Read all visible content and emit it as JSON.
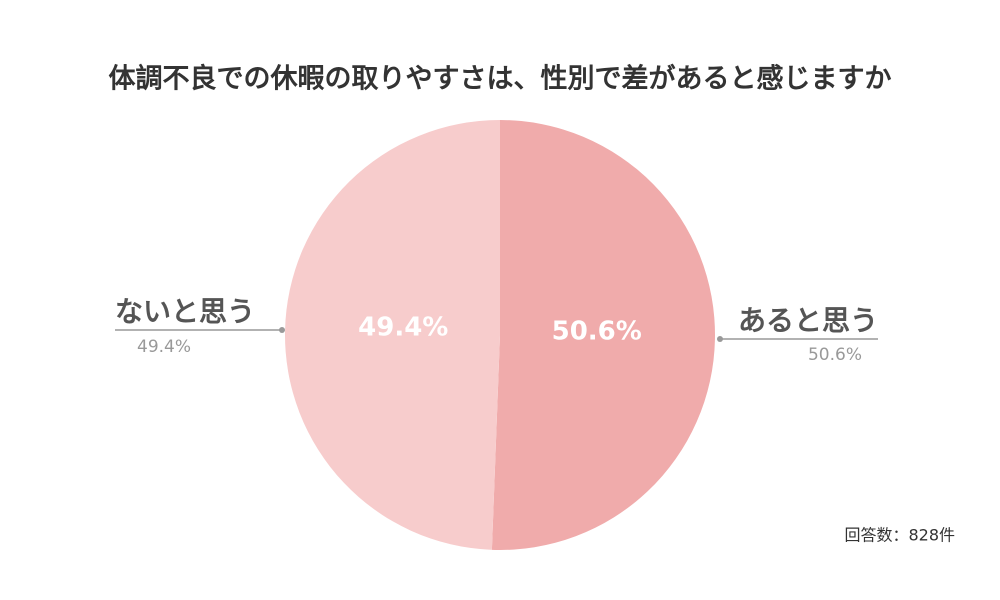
{
  "chart_data": {
    "type": "pie",
    "title": "体調不良での休暇の取りやすさは、性別で差があると感じますか",
    "categories": [
      "あると思う",
      "ないと思う"
    ],
    "values": [
      50.6,
      49.4
    ],
    "value_labels": [
      "50.6%",
      "49.4%"
    ],
    "colors": [
      "#f0abab",
      "#f7cccc"
    ],
    "annotation": "回答数：828件"
  }
}
